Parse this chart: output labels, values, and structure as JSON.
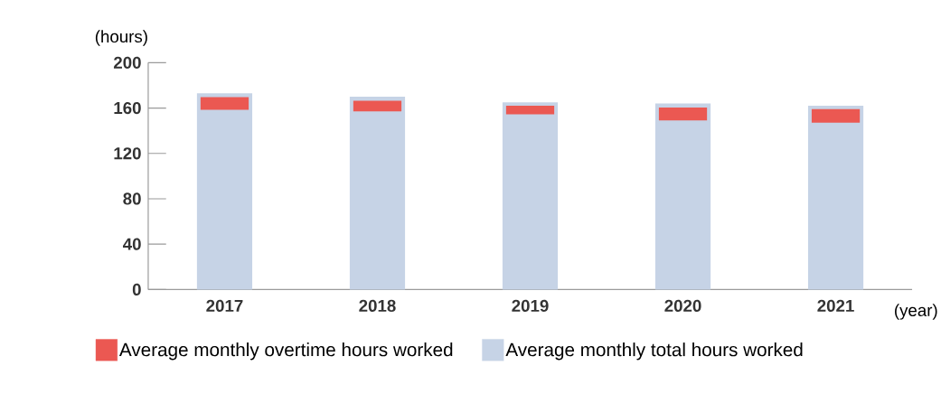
{
  "chart_data": {
    "type": "bar",
    "categories": [
      "2017",
      "2018",
      "2019",
      "2020",
      "2021"
    ],
    "ylabel": "(hours)",
    "xlabel": "(year)",
    "ylim": [
      0,
      200
    ],
    "yticks": [
      0,
      40,
      80,
      120,
      160,
      200
    ],
    "legend": "bottom",
    "grid": false,
    "series": [
      {
        "name": "Average monthly overtime hours worked",
        "color": "#eb5852",
        "base": [
          158.5,
          157,
          154.5,
          149,
          147
        ],
        "values": [
          11,
          9.5,
          7.5,
          11.5,
          12
        ]
      },
      {
        "name": "Average monthly total hours worked",
        "color": "#c6d3e6",
        "values": [
          173,
          170,
          165,
          164,
          162
        ]
      }
    ]
  }
}
